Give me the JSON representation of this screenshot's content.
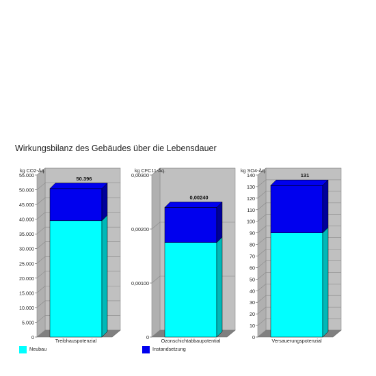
{
  "title": "Wirkungsbilanz des Gebäudes über die Lebensdauer",
  "colors": {
    "neubau": "#00ffff",
    "instandsetzung": "#0000ee",
    "panel": "#c0c0c0",
    "floor": "#808080"
  },
  "legend": [
    {
      "label": "Neubau",
      "color": "#00ffff"
    },
    {
      "label": "Instandsetzung",
      "color": "#0000ee"
    }
  ],
  "chart_data": [
    {
      "type": "bar",
      "unit": "kg CO2-Äq.",
      "category": "Treibhauspotenzial",
      "ylim": [
        0,
        55000
      ],
      "ticks": [
        "0",
        "5.000",
        "10.000",
        "15.000",
        "20.000",
        "25.000",
        "30.000",
        "35.000",
        "40.000",
        "45.000",
        "50.000",
        "55.000"
      ],
      "series": [
        {
          "name": "Neubau",
          "value": 39500
        },
        {
          "name": "Instandsetzung",
          "value": 10896
        }
      ],
      "total_label": "50.396"
    },
    {
      "type": "bar",
      "unit": "kg CFC11-Äq.",
      "category": "Ozonschichtabbaupotential",
      "ylim": [
        0,
        0.003
      ],
      "ticks": [
        "0",
        "0,00100",
        "0,00200",
        "0,00300"
      ],
      "series": [
        {
          "name": "Neubau",
          "value": 0.00175
        },
        {
          "name": "Instandsetzung",
          "value": 0.00065
        }
      ],
      "total_label": "0,00240"
    },
    {
      "type": "bar",
      "unit": "kg SO4-Äq.",
      "category": "Versauerungspotenzial",
      "ylim": [
        0,
        140
      ],
      "ticks": [
        "0",
        "10",
        "20",
        "30",
        "40",
        "50",
        "60",
        "70",
        "80",
        "90",
        "100",
        "110",
        "120",
        "130",
        "140"
      ],
      "series": [
        {
          "name": "Neubau",
          "value": 90
        },
        {
          "name": "Instandsetzung",
          "value": 41
        }
      ],
      "total_label": "131"
    }
  ]
}
